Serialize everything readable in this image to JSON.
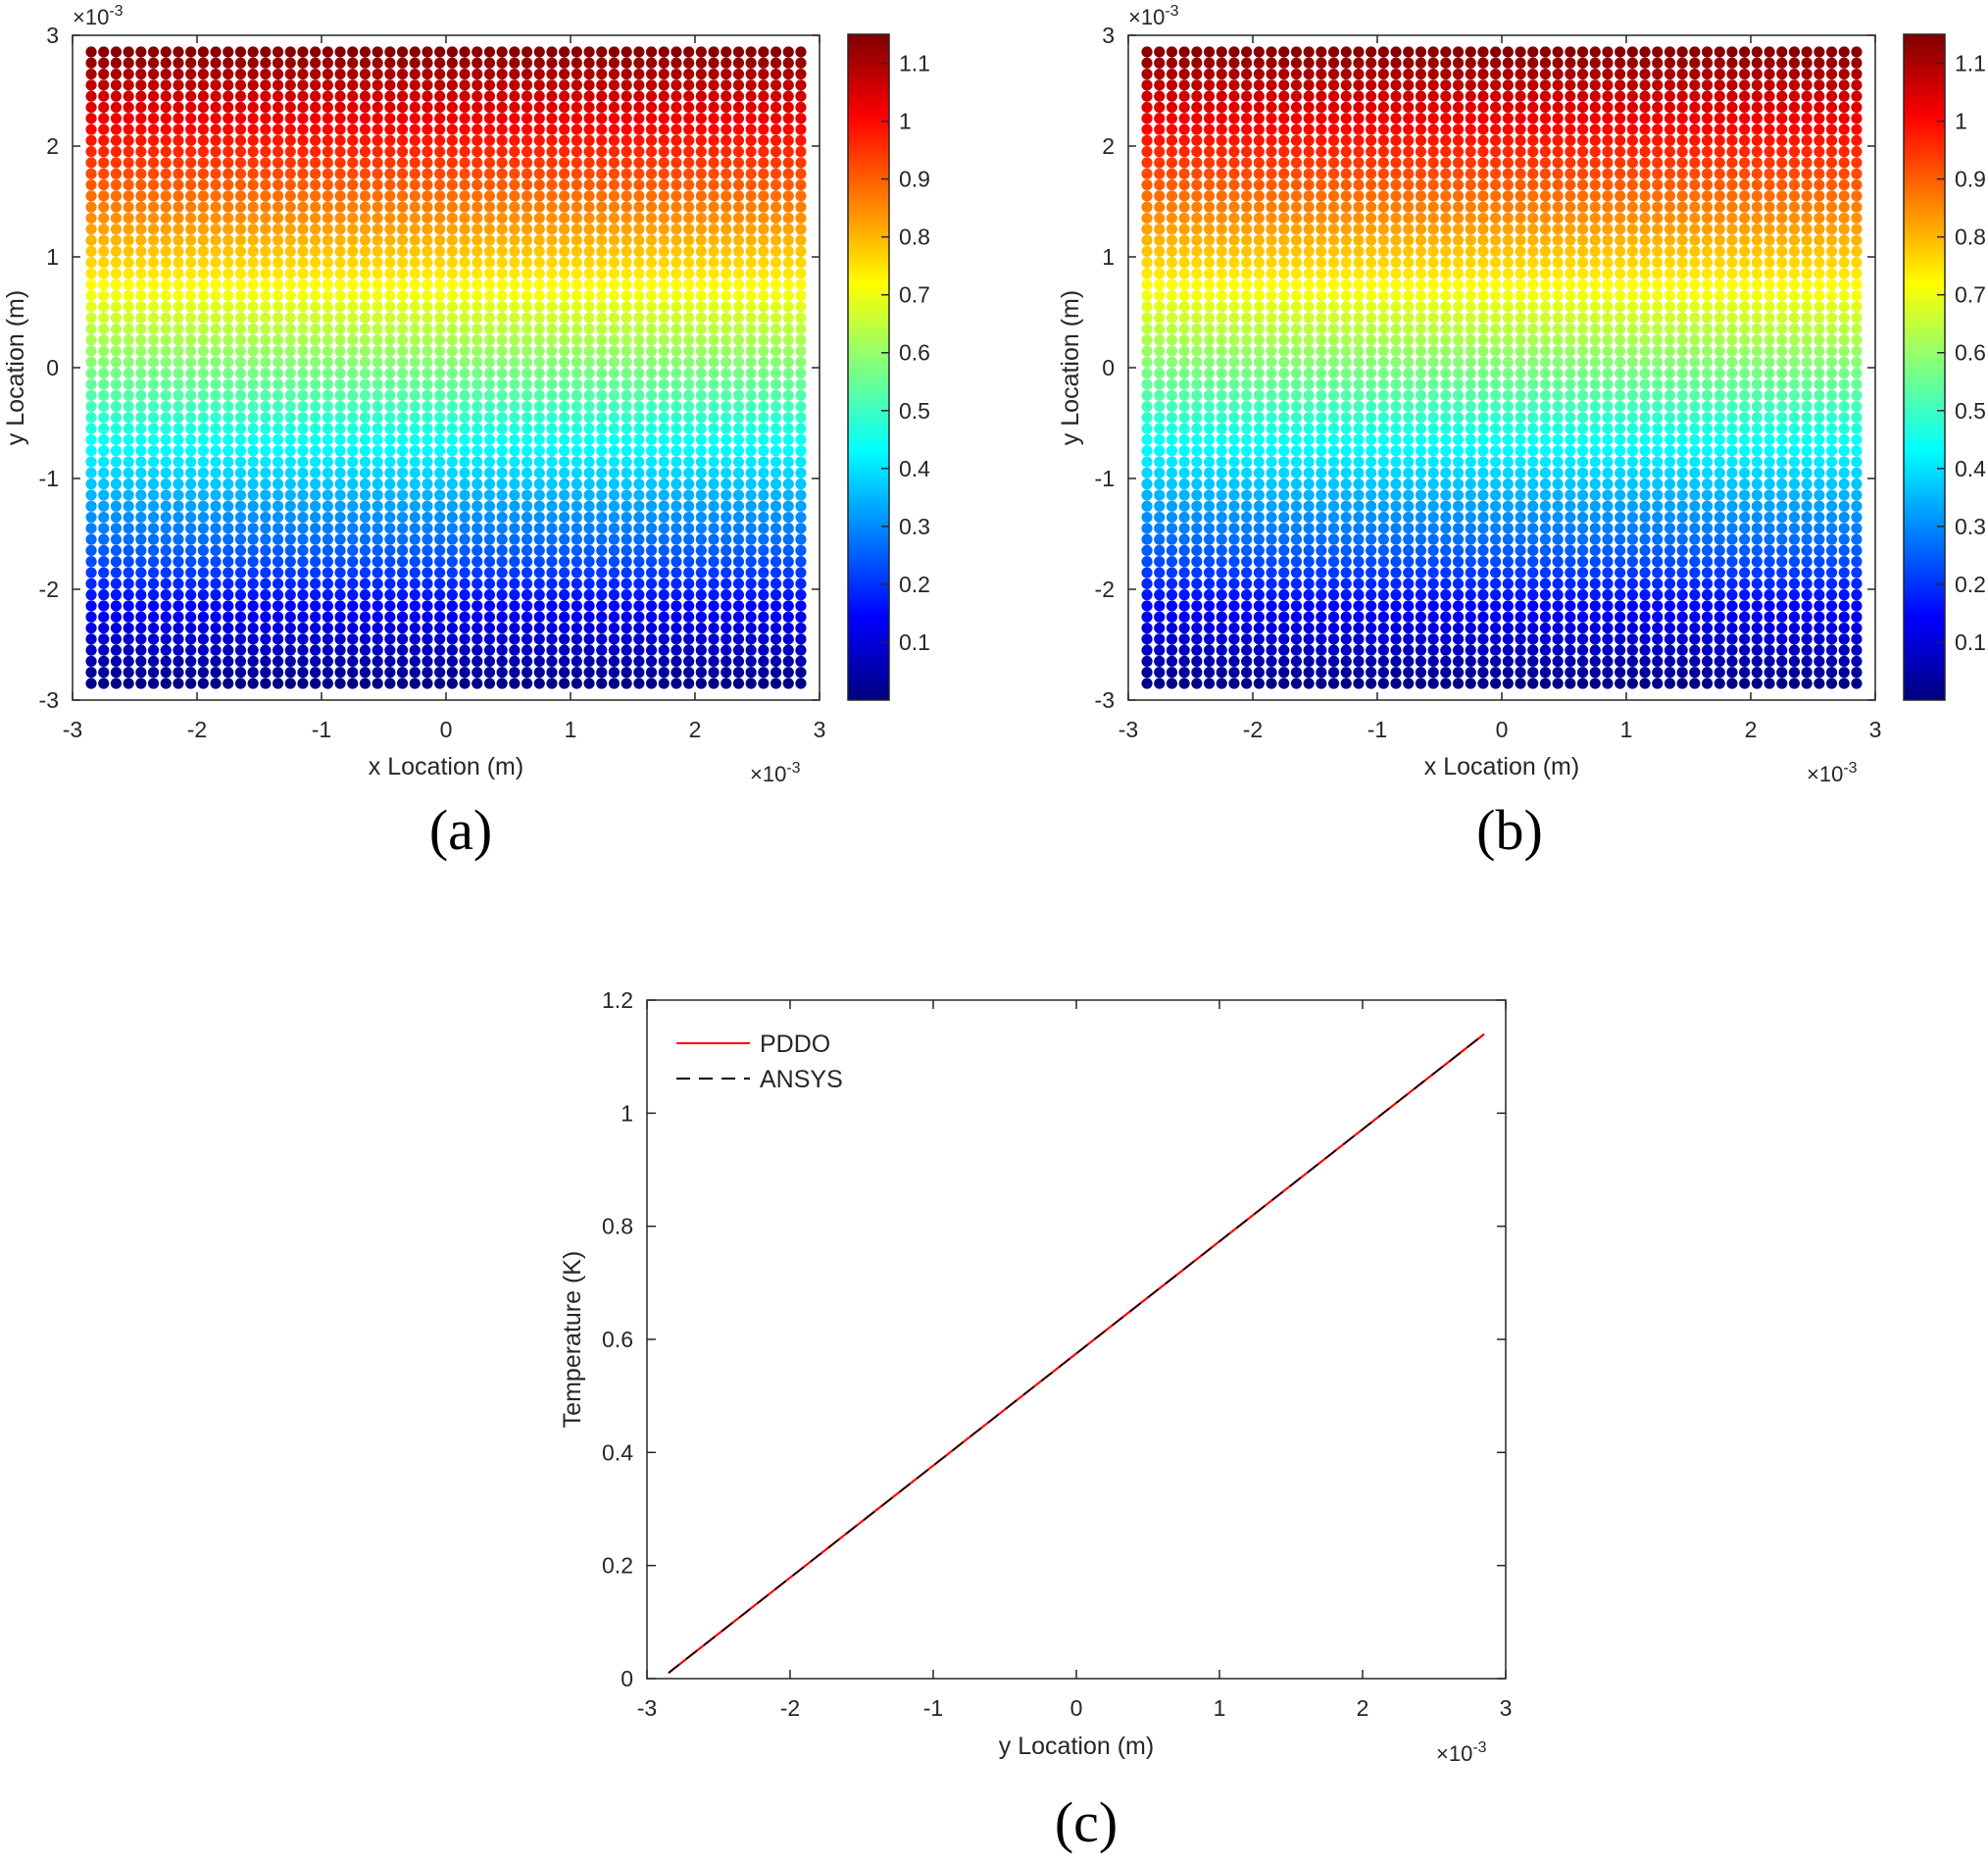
{
  "figure": {
    "colormap": [
      "#00007F",
      "#0000FF",
      "#007FFF",
      "#00FFFF",
      "#7FFF7F",
      "#FFFF00",
      "#FF7F00",
      "#FF0000",
      "#7F0000"
    ]
  },
  "chart_data": [
    {
      "type": "scatter",
      "caption": "(a)",
      "xlabel": "x Location (m)",
      "ylabel": "y Location (m)",
      "x_exponent": "×10",
      "x_exponent_power": "-3",
      "y_exponent": "×10",
      "y_exponent_power": "-3",
      "xlim": [
        -3,
        3
      ],
      "ylim": [
        -3,
        3
      ],
      "xticks": [
        "-3",
        "-2",
        "-1",
        "0",
        "1",
        "2",
        "3"
      ],
      "yticks": [
        "-3",
        "-2",
        "-1",
        "0",
        "1",
        "2",
        "3"
      ],
      "grid_points": {
        "x_range": [
          -2.85,
          2.85
        ],
        "y_range": [
          -2.85,
          2.85
        ],
        "count_x": 58,
        "count_y": 58
      },
      "color_variable": "temperature",
      "color_range": [
        0.01,
        1.14
      ],
      "colorbar_ticks": [
        "0.1",
        "0.2",
        "0.3",
        "0.4",
        "0.5",
        "0.6",
        "0.7",
        "0.8",
        "0.9",
        "1",
        "1.1"
      ],
      "grid": false
    },
    {
      "type": "scatter",
      "caption": "(b)",
      "xlabel": "x Location (m)",
      "ylabel": "y Location (m)",
      "x_exponent": "×10",
      "x_exponent_power": "-3",
      "y_exponent": "×10",
      "y_exponent_power": "-3",
      "xlim": [
        -3,
        3
      ],
      "ylim": [
        -3,
        3
      ],
      "xticks": [
        "-3",
        "-2",
        "-1",
        "0",
        "1",
        "2",
        "3"
      ],
      "yticks": [
        "-3",
        "-2",
        "-1",
        "0",
        "1",
        "2",
        "3"
      ],
      "grid_points": {
        "x_range": [
          -2.85,
          2.85
        ],
        "y_range": [
          -2.85,
          2.85
        ],
        "count_x": 58,
        "count_y": 58
      },
      "color_variable": "temperature",
      "color_range": [
        0.01,
        1.14
      ],
      "colorbar_ticks": [
        "0.1",
        "0.2",
        "0.3",
        "0.4",
        "0.5",
        "0.6",
        "0.7",
        "0.8",
        "0.9",
        "1",
        "1.1"
      ],
      "grid": false
    },
    {
      "type": "line",
      "caption": "(c)",
      "xlabel": "y Location (m)",
      "ylabel": "Temperature (K)",
      "x_exponent": "×10",
      "x_exponent_power": "-3",
      "xlim": [
        -3,
        3
      ],
      "ylim": [
        0,
        1.2
      ],
      "xticks": [
        "-3",
        "-2",
        "-1",
        "0",
        "1",
        "2",
        "3"
      ],
      "yticks": [
        "0",
        "0.2",
        "0.4",
        "0.6",
        "0.8",
        "1",
        "1.2"
      ],
      "legend_position": "top-left",
      "grid": false,
      "series": [
        {
          "name": "PDDO",
          "color": "#FF0000",
          "dash": "solid",
          "x": [
            -2.85,
            2.85
          ],
          "y": [
            0.01,
            1.14
          ]
        },
        {
          "name": "ANSYS",
          "color": "#000000",
          "dash": "dashed",
          "x": [
            -2.85,
            2.85
          ],
          "y": [
            0.01,
            1.14
          ]
        }
      ]
    }
  ]
}
